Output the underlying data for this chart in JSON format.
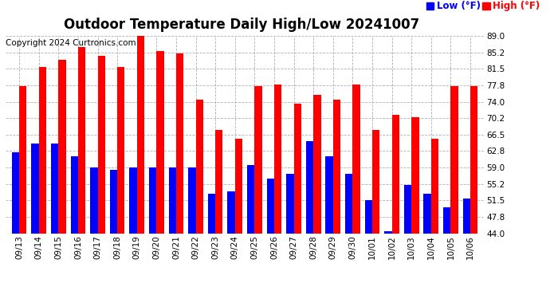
{
  "title": "Outdoor Temperature Daily High/Low 20241007",
  "copyright": "Copyright 2024 Curtronics.com",
  "legend_low": "Low (°F)",
  "legend_high": "High (°F)",
  "categories": [
    "09/13",
    "09/14",
    "09/15",
    "09/16",
    "09/17",
    "09/18",
    "09/19",
    "09/20",
    "09/21",
    "09/22",
    "09/23",
    "09/24",
    "09/25",
    "09/26",
    "09/27",
    "09/28",
    "09/29",
    "09/30",
    "10/01",
    "10/02",
    "10/03",
    "10/04",
    "10/05",
    "10/06"
  ],
  "high_values": [
    77.5,
    82.0,
    83.5,
    86.5,
    84.5,
    82.0,
    89.5,
    85.5,
    85.0,
    74.5,
    67.5,
    65.5,
    77.5,
    78.0,
    73.5,
    75.5,
    74.5,
    78.0,
    67.5,
    71.0,
    70.5,
    65.5,
    77.5,
    77.5
  ],
  "low_values": [
    62.5,
    64.5,
    64.5,
    61.5,
    59.0,
    58.5,
    59.0,
    59.0,
    59.0,
    59.0,
    53.0,
    53.5,
    59.5,
    56.5,
    57.5,
    65.0,
    61.5,
    57.5,
    51.5,
    44.5,
    55.0,
    53.0,
    50.0,
    52.0
  ],
  "ylim_min": 44.0,
  "ylim_max": 89.0,
  "yticks": [
    44.0,
    47.8,
    51.5,
    55.2,
    59.0,
    62.8,
    66.5,
    70.2,
    74.0,
    77.8,
    81.5,
    85.2,
    89.0
  ],
  "high_color": "#ff0000",
  "low_color": "#0000ff",
  "background_color": "#ffffff",
  "grid_color": "#b0b0b0",
  "title_fontsize": 12,
  "copyright_fontsize": 7.5,
  "tick_fontsize": 7.5,
  "bar_width": 0.38
}
